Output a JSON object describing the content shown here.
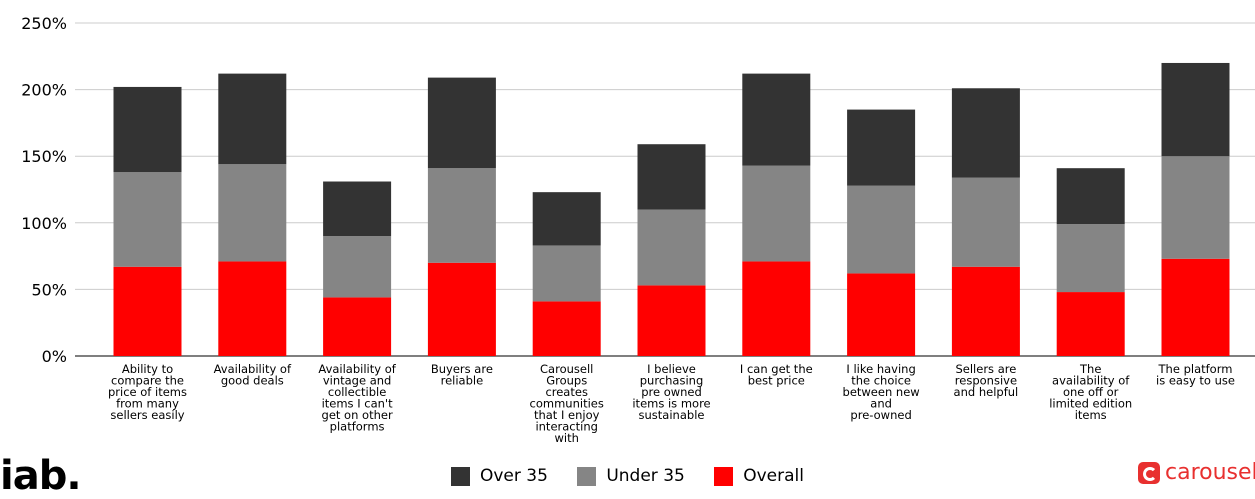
{
  "chart_data": {
    "type": "bar",
    "stacked": true,
    "categories": [
      "Ability to compare the price of items from many sellers easily",
      "Availability of good deals",
      "Availability of vintage and collectible items I can't get on other platforms",
      "Buyers are reliable",
      "Carousell Groups creates communities that I enjoy interacting with",
      "I believe purchasing pre owned items is more sustainable",
      "I can get the best price",
      "I like having the choice between new and pre-owned",
      "Sellers are responsive and helpful",
      "The availability of one off or limited edition items",
      "The platform is easy to use"
    ],
    "category_lines": [
      [
        "Ability to",
        "compare the",
        "price of items",
        "from many",
        "sellers easily"
      ],
      [
        "Availability of",
        "good deals"
      ],
      [
        "Availability of",
        "vintage and",
        "collectible",
        "items I can't",
        "get on other",
        "platforms"
      ],
      [
        "Buyers are",
        "reliable"
      ],
      [
        "Carousell",
        "Groups",
        "creates",
        "communities",
        "that I enjoy",
        "interacting",
        "with"
      ],
      [
        "I believe",
        "purchasing",
        "pre owned",
        "items is more",
        "sustainable"
      ],
      [
        "I can get the",
        "best price"
      ],
      [
        "I like having",
        "the choice",
        "between new",
        "and",
        "pre-owned"
      ],
      [
        "Sellers are",
        "responsive",
        "and helpful"
      ],
      [
        "The",
        "availability of",
        "one off or",
        "limited edition",
        "items"
      ],
      [
        "The platform",
        "is easy to use"
      ]
    ],
    "series": [
      {
        "name": "Overall",
        "color": "#ff0000",
        "values": [
          67,
          71,
          44,
          70,
          41,
          53,
          71,
          62,
          67,
          48,
          73
        ]
      },
      {
        "name": "Under 35",
        "color": "#858585",
        "values": [
          71,
          73,
          46,
          71,
          42,
          57,
          72,
          66,
          67,
          51,
          77
        ]
      },
      {
        "name": "Over 35",
        "color": "#333333",
        "values": [
          64,
          68,
          41,
          68,
          40,
          49,
          69,
          57,
          67,
          42,
          70
        ]
      }
    ],
    "legend_order": [
      "Over 35",
      "Under 35",
      "Overall"
    ],
    "ylim": [
      0,
      250
    ],
    "yticks": [
      0,
      50,
      100,
      150,
      200,
      250
    ],
    "ytick_labels": [
      "0%",
      "50%",
      "100%",
      "150%",
      "200%",
      "250%"
    ],
    "grid": true,
    "legend_position": "bottom"
  },
  "logos": {
    "left": "iab.",
    "right": "carousell"
  }
}
